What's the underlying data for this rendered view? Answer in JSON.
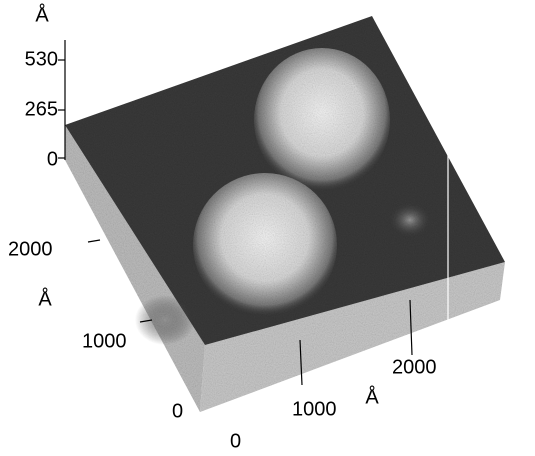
{
  "z_axis": {
    "unit": "Å",
    "ticks": [
      530,
      265,
      0
    ]
  },
  "y_axis": {
    "unit": "Å",
    "ticks": [
      2000,
      1000,
      0
    ]
  },
  "x_axis": {
    "unit": "Å",
    "ticks": [
      0,
      1000,
      2000
    ]
  }
}
